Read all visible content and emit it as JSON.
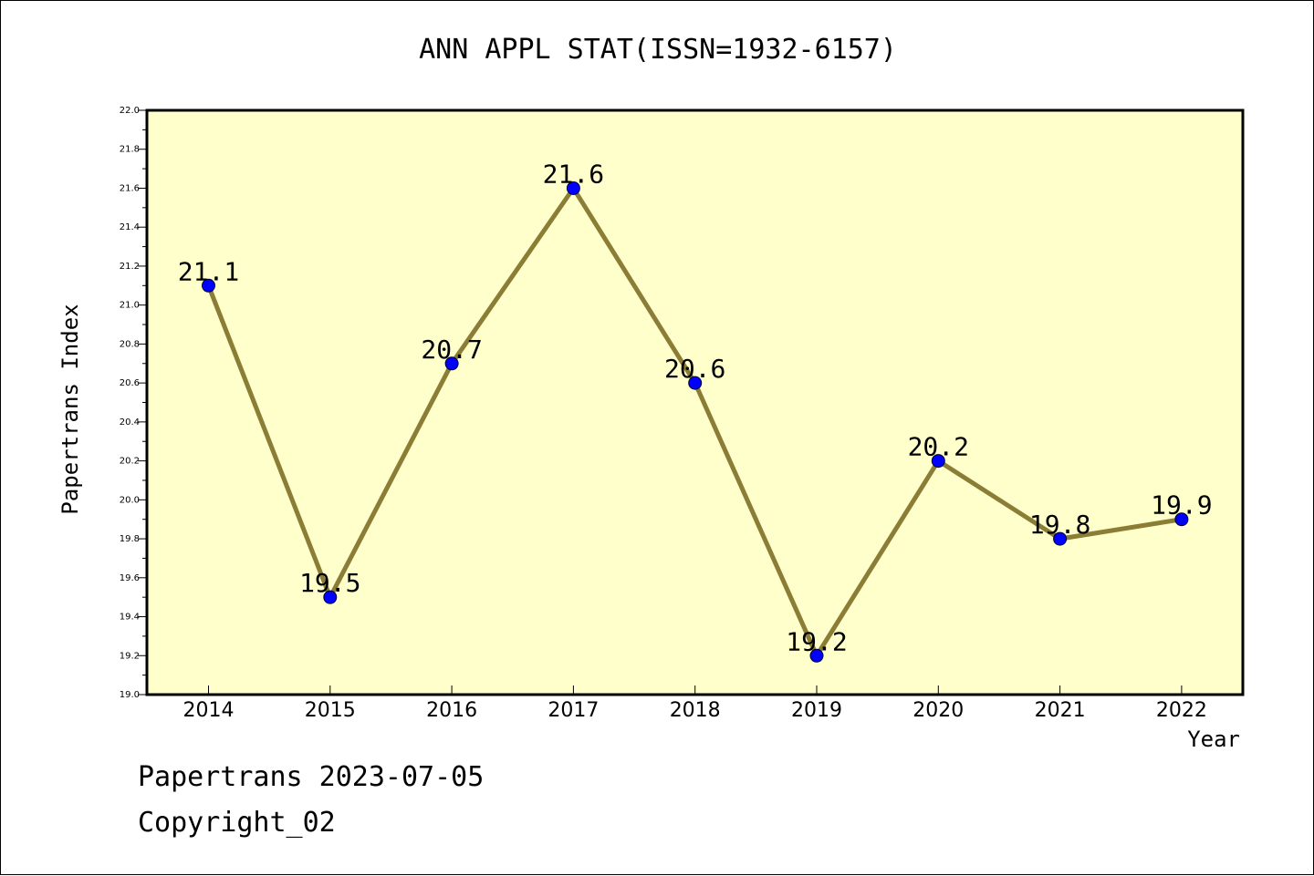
{
  "chart_data": {
    "type": "line",
    "title": "ANN APPL STAT(ISSN=1932-6157)",
    "xlabel": "Year",
    "ylabel": "Papertrans Index",
    "categories": [
      "2014",
      "2015",
      "2016",
      "2017",
      "2018",
      "2019",
      "2020",
      "2021",
      "2022"
    ],
    "series": [
      {
        "values": [
          21.1,
          19.5,
          20.7,
          21.6,
          20.6,
          19.2,
          20.2,
          19.8,
          19.9
        ]
      }
    ],
    "data_labels": [
      "21.1",
      "19.5",
      "20.7",
      "21.6",
      "20.6",
      "19.2",
      "20.2",
      "19.8",
      "19.9"
    ],
    "ylim": [
      19.0,
      22.0
    ],
    "yticks": [
      "19.0",
      "19.2",
      "19.4",
      "19.6",
      "19.8",
      "20.0",
      "20.2",
      "20.4",
      "20.6",
      "20.8",
      "21.0",
      "21.2",
      "21.4",
      "21.6",
      "21.8",
      "22.0"
    ],
    "grid": false,
    "legend": "none",
    "colors": {
      "plot_background": "#ffffcc",
      "line": "#8b7d35",
      "marker": "#0000ff"
    }
  },
  "footer": {
    "line1": "Papertrans 2023-07-05",
    "line2": "Copyright_02"
  }
}
